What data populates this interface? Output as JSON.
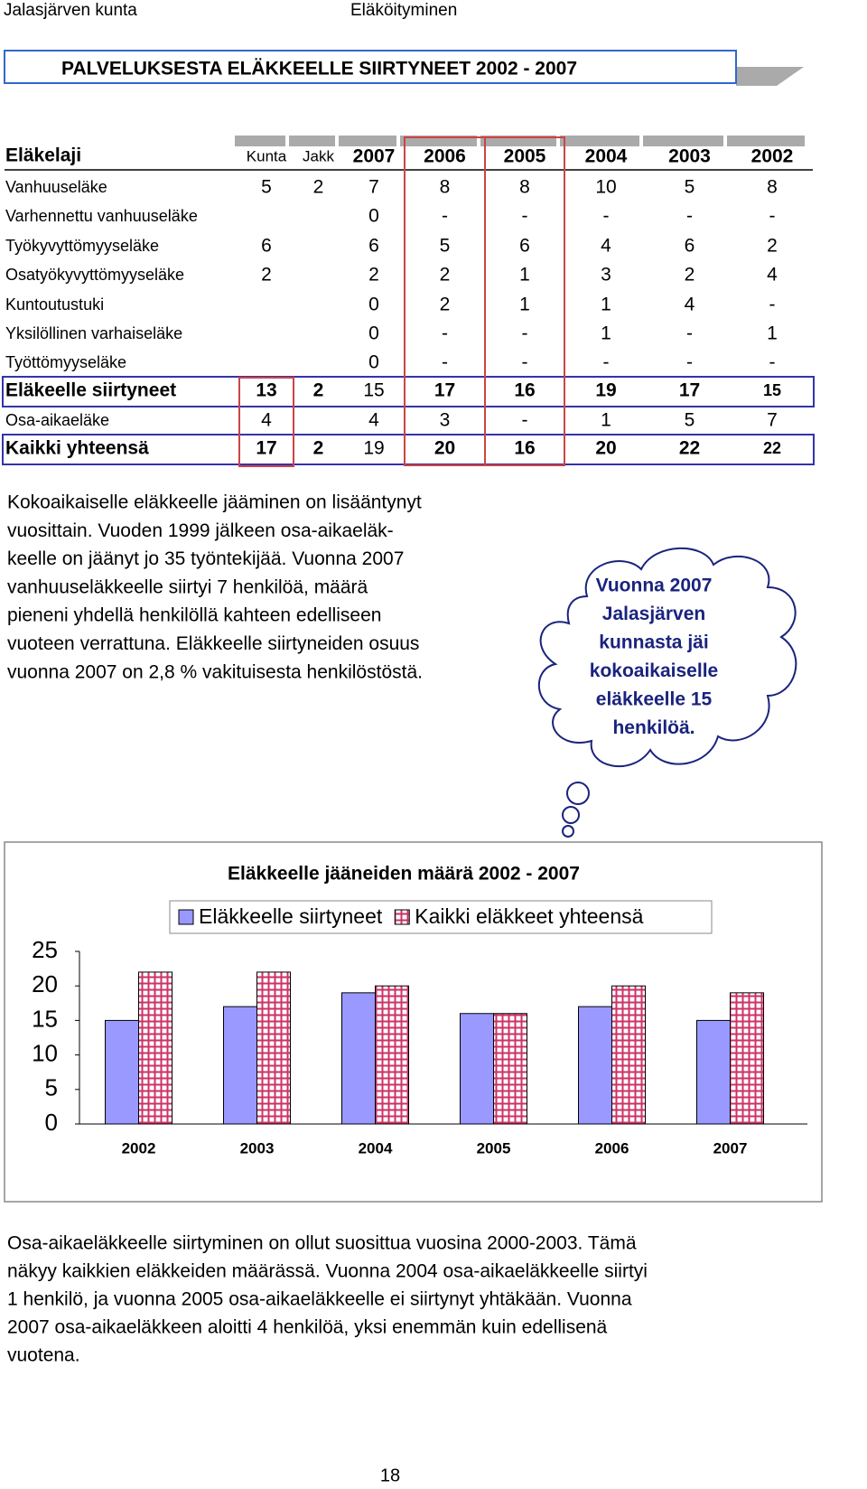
{
  "header": {
    "left": "Jalasjärven kunta",
    "right": "Eläköityminen"
  },
  "title": "PALVELUKSESTA ELÄKKEELLE SIIRTYNEET 2002 - 2007",
  "table": {
    "columns": [
      "Eläkelaji",
      "Kunta",
      "Jakk",
      "2007",
      "2006",
      "2005",
      "2004",
      "2003",
      "2002"
    ],
    "rows": [
      [
        "Vanhuuseläke",
        "5",
        "2",
        "7",
        "8",
        "8",
        "10",
        "5",
        "8"
      ],
      [
        "Varhennettu vanhuuseläke",
        null,
        null,
        "0",
        "-",
        "-",
        "-",
        "-",
        "-"
      ],
      [
        "Työkyvyttömyyseläke",
        "6",
        null,
        "6",
        "5",
        "6",
        "4",
        "6",
        "2"
      ],
      [
        "Osatyökyvyttömyyseläke",
        "2",
        null,
        "2",
        "2",
        "1",
        "3",
        "2",
        "4"
      ],
      [
        "Kuntoutustuki",
        null,
        null,
        "0",
        "2",
        "1",
        "1",
        "4",
        "-"
      ],
      [
        "Yksilöllinen varhaiseläke",
        null,
        null,
        "0",
        "-",
        "-",
        "1",
        "-",
        "1"
      ],
      [
        "Työttömyyseläke",
        null,
        null,
        "0",
        "-",
        "-",
        "-",
        "-",
        "-"
      ],
      [
        "Eläkeelle siirtyneet",
        "13",
        "2",
        "15",
        "17",
        "16",
        "19",
        "17",
        "15"
      ],
      [
        "Osa-aikaeläke",
        "4",
        null,
        "4",
        "3",
        "-",
        "1",
        "5",
        "7"
      ],
      [
        "Kaikki yhteensä",
        "17",
        "2",
        "19",
        "20",
        "16",
        "20",
        "22",
        "22"
      ]
    ]
  },
  "paragraph1": [
    "Kokoaikaiselle eläkkeelle jääminen on lisääntynyt",
    "vuosittain. Vuoden 1999 jälkeen osa-aikaeläk-",
    "keelle on jäänyt jo 35 työntekijää. Vuonna 2007",
    "vanhuuseläkkeelle siirtyi 7 henkilöä, määrä",
    "pieneni yhdellä henkilöllä kahteen edelliseen",
    "vuoteen verrattuna. Eläkkeelle siirtyneiden osuus",
    "vuonna 2007 on 2,8 % vakituisesta henkilöstöstä."
  ],
  "callout": [
    "Vuonna 2007",
    "Jalasjärven",
    "kunnasta jäi",
    "kokoaikaiselle",
    "eläkkeelle 15",
    "henkilöä."
  ],
  "chart_data": {
    "type": "bar",
    "title": "Eläkkeelle jääneiden määrä 2002 - 2007",
    "categories": [
      "2002",
      "2003",
      "2004",
      "2005",
      "2006",
      "2007"
    ],
    "series": [
      {
        "name": "Eläkkeelle siirtyneet",
        "color": "#9999ff",
        "values": [
          15,
          17,
          19,
          16,
          17,
          15
        ]
      },
      {
        "name": "Kaikki eläkkeet yhteensä",
        "color": "#cc3366",
        "values": [
          22,
          22,
          20,
          16,
          20,
          19
        ]
      }
    ],
    "ylim": [
      0,
      25
    ],
    "yticks": [
      0,
      5,
      10,
      15,
      20,
      25
    ],
    "grid": false,
    "legend": "top"
  },
  "paragraph2": [
    "Osa-aikaeläkkeelle siirtyminen on ollut suosittua vuosina 2000-2003. Tämä",
    "näkyy kaikkien eläkkeiden määrässä. Vuonna 2004 osa-aikaeläkkeelle siirtyi",
    "1 henkilö, ja vuonna 2005 osa-aikaeläkkeelle ei siirtynyt yhtäkään. Vuonna",
    "2007 osa-aikaeläkkeen aloitti 4 henkilöä, yksi enemmän kuin edellisenä",
    "vuotena."
  ],
  "page_number": "18"
}
